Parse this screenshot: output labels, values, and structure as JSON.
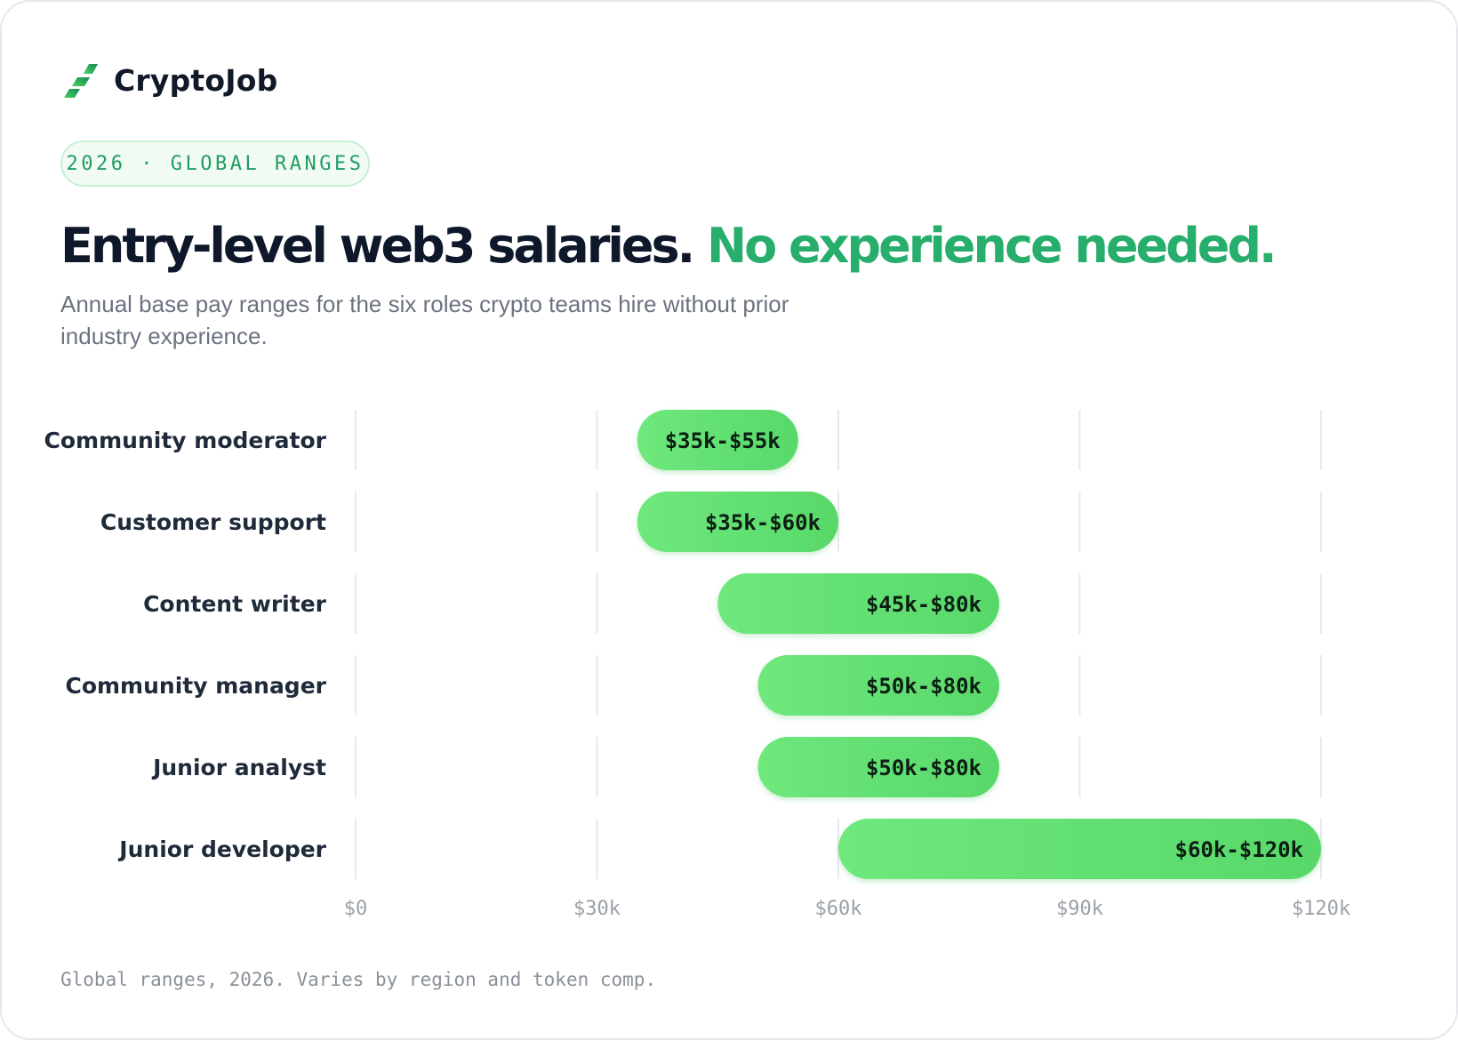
{
  "brand": {
    "name": "CryptoJob",
    "logo_icon": "cryptojob-logo-icon"
  },
  "tag": "2026 · GLOBAL RANGES",
  "headline": {
    "main": "Entry-level web3 salaries.",
    "accent": "No experience needed."
  },
  "subtitle": "Annual base pay ranges for the six roles crypto teams hire without prior industry experience.",
  "colors": {
    "accent": "#27ae6c",
    "bar_start": "#6fe87c",
    "bar_end": "#58d86a",
    "heading": "#0f172a"
  },
  "chart_data": {
    "type": "bar",
    "orientation": "horizontal",
    "categories": [
      "Community moderator",
      "Customer support",
      "Content writer",
      "Community manager",
      "Junior analyst",
      "Junior developer"
    ],
    "ranges": [
      [
        35,
        55
      ],
      [
        35,
        60
      ],
      [
        45,
        80
      ],
      [
        50,
        80
      ],
      [
        50,
        80
      ],
      [
        60,
        120
      ]
    ],
    "labels": [
      "$35k-$55k",
      "$35k-$60k",
      "$45k-$80k",
      "$50k-$80k",
      "$50k-$80k",
      "$60k-$120k"
    ],
    "unit": "$k",
    "xlim": [
      0,
      120
    ],
    "xticks": [
      0,
      30,
      60,
      90,
      120
    ],
    "xtick_labels": [
      "$0",
      "$30k",
      "$60k",
      "$90k",
      "$120k"
    ],
    "grid": true
  },
  "footnote": "Global ranges, 2026. Varies by region and token comp."
}
